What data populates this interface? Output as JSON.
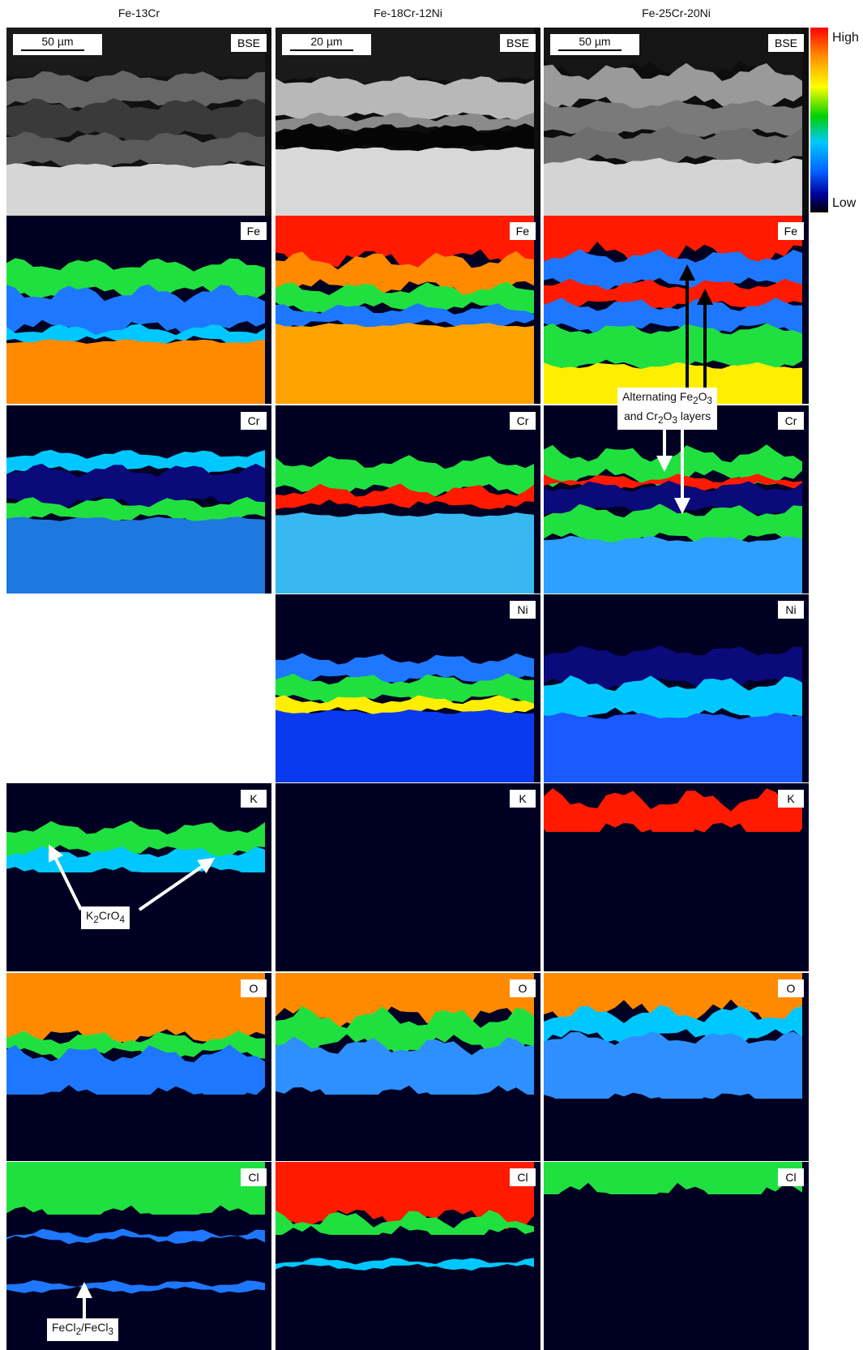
{
  "columns": [
    "Fe-13Cr",
    "Fe-18Cr-12Ni",
    "Fe-25Cr-20Ni"
  ],
  "scale_bars": [
    "50 µm",
    "20 µm",
    "50 µm"
  ],
  "rows": [
    "BSE",
    "Fe",
    "Cr",
    "Ni",
    "K",
    "O",
    "Cl"
  ],
  "colorbar": {
    "high": "High",
    "low": "Low"
  },
  "annotations": {
    "alternating": {
      "line1": "Alternating Fe",
      "sub1": "2",
      "line1b": "O",
      "sub1b": "3",
      "line2": "and Cr",
      "sub2": "2",
      "line2b": "O",
      "sub2b": "3",
      "line2c": " layers"
    },
    "k2cro4": {
      "pre": "K",
      "sub1": "2",
      "mid": "CrO",
      "sub2": "4"
    },
    "fecl": {
      "pre": "FeCl",
      "sub1": "2",
      "mid": "/FeCl",
      "sub2": "3"
    }
  },
  "colors": {
    "bg": "#000022",
    "low": "#0a0a7a",
    "mid": "#1e78ff",
    "cyan": "#00c8ff",
    "green": "#20e040",
    "yellow": "#ffee00",
    "orange": "#ff8a00",
    "red": "#ff1a00"
  }
}
